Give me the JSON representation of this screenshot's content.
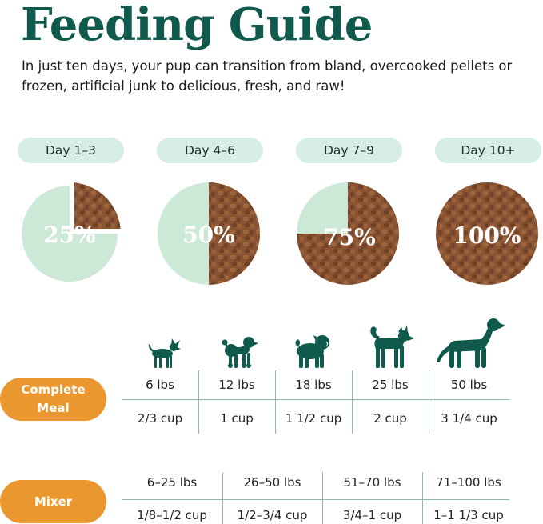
{
  "header": {
    "title": "Feeding Guide",
    "intro": "In just ten days, your pup can transition from bland, overcooked pellets or frozen, artificial junk to delicious, fresh, and raw!"
  },
  "colors": {
    "brand_green": "#0f5a4c",
    "mint": "#d7ede8",
    "pie_green": "#cbe9d6",
    "food_brown": "#8a5433",
    "orange": "#eb9730"
  },
  "transition": [
    {
      "day": "Day 1–3",
      "percent": "25%",
      "fresh_fraction": 0.25
    },
    {
      "day": "Day 4–6",
      "percent": "50%",
      "fresh_fraction": 0.5
    },
    {
      "day": "Day 7–9",
      "percent": "75%",
      "fresh_fraction": 0.75
    },
    {
      "day": "Day 10+",
      "percent": "100%",
      "fresh_fraction": 1.0
    }
  ],
  "dogs": [
    "chihuahua-icon",
    "poodle-icon",
    "pug-icon",
    "shiba-icon",
    "retriever-icon"
  ],
  "complete_meal": {
    "label_line1": "Complete",
    "label_line2": "Meal",
    "weights": [
      "6 lbs",
      "12 lbs",
      "18 lbs",
      "25 lbs",
      "50 lbs"
    ],
    "amounts": [
      "2/3 cup",
      "1 cup",
      "1 1/2 cup",
      "2 cup",
      "3 1/4 cup"
    ]
  },
  "mixer": {
    "label": "Mixer",
    "weights": [
      "6–25 lbs",
      "26–50 lbs",
      "51–70 lbs",
      "71–100 lbs"
    ],
    "amounts": [
      "1/8–1/2 cup",
      "1/2–3/4 cup",
      "3/4–1 cup",
      "1–1 1/3 cup"
    ]
  }
}
